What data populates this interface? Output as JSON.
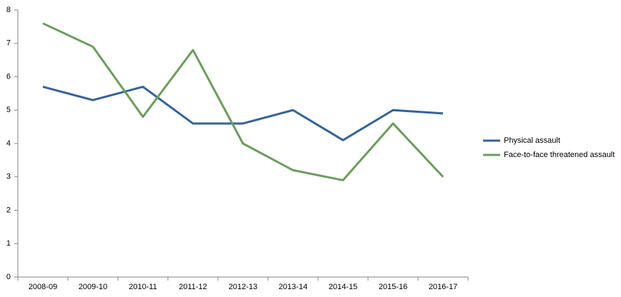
{
  "chart_data": {
    "type": "line",
    "categories": [
      "2008-09",
      "2009-10",
      "2010-11",
      "2011-12",
      "2012-13",
      "2013-14",
      "2014-15",
      "2015-16",
      "2016-17"
    ],
    "series": [
      {
        "name": "Physical assault",
        "color": "#33639a",
        "values": [
          5.7,
          5.3,
          5.7,
          4.6,
          4.6,
          5.0,
          4.1,
          5.0,
          4.9
        ]
      },
      {
        "name": "Face-to-face threatened assault",
        "color": "#6a9e5c",
        "values": [
          7.6,
          6.9,
          4.8,
          6.8,
          4.0,
          3.2,
          2.9,
          4.6,
          3.0
        ]
      }
    ],
    "ylim": [
      0,
      8
    ],
    "yticks": [
      0,
      1,
      2,
      3,
      4,
      5,
      6,
      7,
      8
    ],
    "grid": false,
    "legend": "right"
  }
}
